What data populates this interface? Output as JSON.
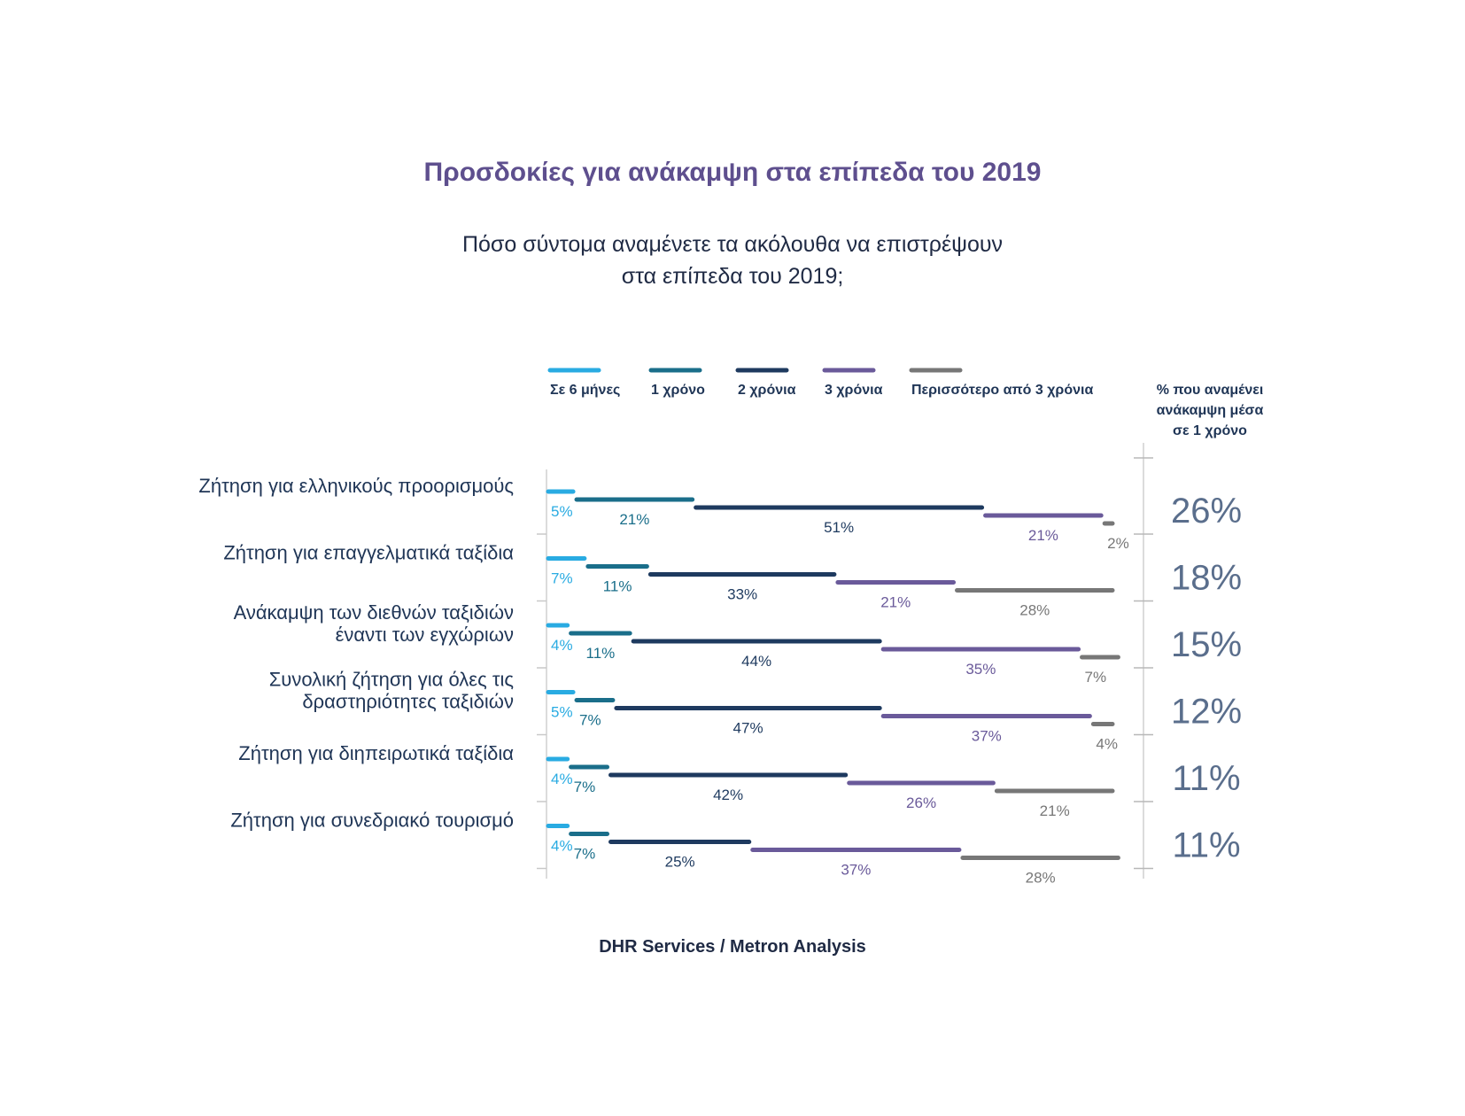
{
  "title": "Προσδοκίες για ανάκαμψη στα επίπεδα του 2019",
  "subtitle_lines": [
    "Πόσο σύντομα αναμένετε τα ακόλουθα να επιστρέψουν",
    "στα επίπεδα του 2019;"
  ],
  "source": "DHR Services / Metron Analysis",
  "side_header_lines": [
    "% που αναμένει",
    "ανάκαμψη μέσα",
    "σε 1 χρόνο"
  ],
  "chart_data": {
    "type": "bar",
    "stacked": true,
    "orientation": "horizontal",
    "value_suffix": "%",
    "colors": [
      "#29abe2",
      "#1a6e8a",
      "#1e3a5f",
      "#6a5a9a",
      "#777777"
    ],
    "categories": [
      [
        "Ζήτηση για ελληνικούς προορισμούς"
      ],
      [
        "Ζήτηση για επαγγελματικά ταξίδια"
      ],
      [
        "Ανάκαμψη των διεθνών ταξιδιών",
        "έναντι των εγχώριων"
      ],
      [
        "Συνολική ζήτηση για όλες τις",
        "δραστηριότητες ταξιδιών"
      ],
      [
        "Ζήτηση για διηπειρωτικά ταξίδια"
      ],
      [
        "Ζήτηση για συνεδριακό τουρισμό"
      ]
    ],
    "series": [
      {
        "name": "Σε 6 μήνες",
        "values": [
          5,
          7,
          4,
          5,
          4,
          4
        ]
      },
      {
        "name": "1 χρόνο",
        "values": [
          21,
          11,
          11,
          7,
          7,
          7
        ]
      },
      {
        "name": "2 χρόνια",
        "values": [
          51,
          33,
          44,
          47,
          42,
          25
        ]
      },
      {
        "name": "3 χρόνια",
        "values": [
          21,
          21,
          35,
          37,
          26,
          37
        ]
      },
      {
        "name": "Περισσότερο από 3 χρόνια",
        "values": [
          2,
          28,
          7,
          4,
          21,
          28
        ]
      }
    ],
    "within_one_year": [
      26,
      18,
      15,
      12,
      11,
      11
    ]
  }
}
